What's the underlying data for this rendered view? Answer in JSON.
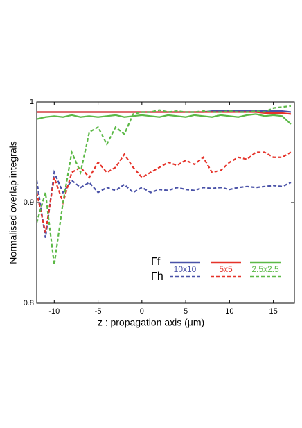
{
  "chart_data": {
    "type": "line",
    "x_label": "z : propagation axis (μm)",
    "y_label": "Normalised overlap integrals",
    "x": [
      -12,
      -11,
      -10,
      -9,
      -8,
      -7,
      -6,
      -5,
      -4,
      -3,
      -2,
      -1,
      0,
      1,
      2,
      3,
      4,
      5,
      6,
      7,
      8,
      9,
      10,
      11,
      12,
      13,
      14,
      15,
      16,
      17
    ],
    "row_labels": [
      "Γf",
      "Γh"
    ],
    "series": [
      {
        "name": "10x10",
        "color": "#4a52a8",
        "values_f": [
          0.99,
          0.99,
          0.99,
          0.99,
          0.99,
          0.99,
          0.99,
          0.99,
          0.99,
          0.99,
          0.99,
          0.99,
          0.99,
          0.99,
          0.99,
          0.99,
          0.99,
          0.99,
          0.99,
          0.99,
          0.991,
          0.991,
          0.991,
          0.991,
          0.991,
          0.991,
          0.991,
          0.991,
          0.991,
          0.99
        ],
        "values_h": [
          0.922,
          0.865,
          0.93,
          0.91,
          0.922,
          0.915,
          0.92,
          0.91,
          0.915,
          0.912,
          0.918,
          0.91,
          0.915,
          0.91,
          0.913,
          0.912,
          0.915,
          0.913,
          0.912,
          0.915,
          0.914,
          0.915,
          0.913,
          0.915,
          0.916,
          0.915,
          0.916,
          0.917,
          0.916,
          0.92
        ]
      },
      {
        "name": "5x5",
        "color": "#e5332a",
        "values_f": [
          0.99,
          0.99,
          0.99,
          0.99,
          0.99,
          0.99,
          0.99,
          0.99,
          0.99,
          0.99,
          0.99,
          0.99,
          0.99,
          0.99,
          0.99,
          0.99,
          0.99,
          0.99,
          0.99,
          0.99,
          0.99,
          0.99,
          0.99,
          0.99,
          0.99,
          0.99,
          0.989,
          0.989,
          0.989,
          0.988
        ],
        "values_h": [
          0.91,
          0.87,
          0.925,
          0.9,
          0.93,
          0.935,
          0.925,
          0.94,
          0.93,
          0.935,
          0.948,
          0.935,
          0.925,
          0.93,
          0.935,
          0.94,
          0.937,
          0.942,
          0.938,
          0.945,
          0.93,
          0.932,
          0.94,
          0.945,
          0.943,
          0.95,
          0.95,
          0.945,
          0.945,
          0.95
        ]
      },
      {
        "name": "2.5x2.5",
        "color": "#5cb947",
        "values_f": [
          0.983,
          0.985,
          0.986,
          0.985,
          0.987,
          0.985,
          0.986,
          0.985,
          0.986,
          0.987,
          0.985,
          0.986,
          0.987,
          0.986,
          0.985,
          0.987,
          0.986,
          0.985,
          0.987,
          0.986,
          0.985,
          0.987,
          0.986,
          0.985,
          0.987,
          0.988,
          0.986,
          0.987,
          0.986,
          0.978
        ],
        "values_h": [
          0.88,
          0.91,
          0.838,
          0.9,
          0.95,
          0.93,
          0.97,
          0.975,
          0.958,
          0.975,
          0.968,
          0.988,
          0.99,
          0.99,
          0.992,
          0.99,
          0.991,
          0.99,
          0.99,
          0.991,
          0.99,
          0.99,
          0.991,
          0.99,
          0.99,
          0.991,
          0.99,
          0.994,
          0.995,
          0.996
        ]
      }
    ],
    "xlim": [
      -12,
      17.4
    ],
    "xticks": [
      -10,
      -5,
      0,
      5,
      10,
      15
    ],
    "ylim": [
      0.8,
      1
    ],
    "yticks": [
      0.8,
      0.9,
      1
    ],
    "grid": false
  }
}
